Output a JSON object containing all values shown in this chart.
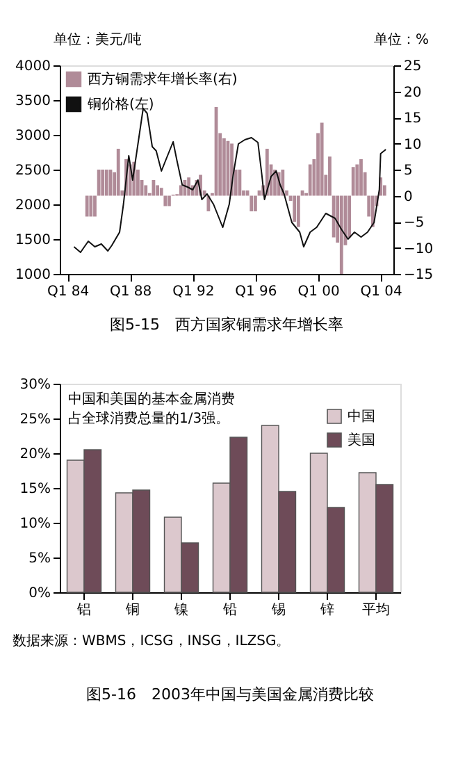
{
  "chart_data": [
    {
      "type": "bar",
      "title": "图5-15　西方国家铜需求年增长率",
      "ylabel": "单位：美元/吨",
      "y2label": "单位：%",
      "legend": "top left",
      "grid": false,
      "xlim": [
        "1983-12-15",
        "2004-05-15"
      ],
      "xticks": [
        {
          "value": "1984-01",
          "label": "Q1 84"
        },
        {
          "value": "1988-01",
          "label": "Q1 88"
        },
        {
          "value": "1992-01",
          "label": "Q1 92"
        },
        {
          "value": "1996-01",
          "label": "Q1 96"
        },
        {
          "value": "2000-01",
          "label": "Q1 00"
        },
        {
          "value": "2004-01",
          "label": "Q1 04"
        }
      ],
      "ylim": [
        1000,
        4000
      ],
      "yticks": [
        1000,
        1500,
        2000,
        2500,
        3000,
        3500,
        4000
      ],
      "y2lim": [
        -15,
        25
      ],
      "y2ticks": [
        -15,
        -10,
        -5,
        0,
        5,
        10,
        15,
        20,
        25
      ],
      "series": [
        {
          "name": "西方铜需求年增长率(右)",
          "type": "bar",
          "axis": "y2",
          "color": "#b08b98",
          "x": [
            "1985-04",
            "1985-07",
            "1985-10",
            "1986-01",
            "1986-04",
            "1986-07",
            "1986-10",
            "1987-01",
            "1987-04",
            "1987-07",
            "1987-10",
            "1988-01",
            "1988-04",
            "1988-07",
            "1988-10",
            "1989-01",
            "1989-04",
            "1989-07",
            "1989-10",
            "1990-01",
            "1990-04",
            "1990-07",
            "1990-10",
            "1991-01",
            "1991-04",
            "1991-07",
            "1991-10",
            "1992-01",
            "1992-04",
            "1992-07",
            "1992-10",
            "1993-01",
            "1993-04",
            "1993-07",
            "1993-10",
            "1994-01",
            "1994-04",
            "1994-07",
            "1994-10",
            "1995-01",
            "1995-04",
            "1995-07",
            "1995-10",
            "1996-01",
            "1996-04",
            "1996-07",
            "1996-10",
            "1997-01",
            "1997-04",
            "1997-07",
            "1997-10",
            "1998-01",
            "1998-04",
            "1998-07",
            "1998-10",
            "1999-01",
            "1999-04",
            "1999-07",
            "1999-10",
            "2000-01",
            "2000-04",
            "2000-07",
            "2000-10",
            "2001-01",
            "2001-04",
            "2001-07",
            "2001-10",
            "2002-01",
            "2002-04",
            "2002-07",
            "2002-10",
            "2003-01",
            "2003-04",
            "2003-07",
            "2003-10",
            "2004-01",
            "2004-04"
          ],
          "values": [
            -4,
            -4,
            -4,
            5,
            5,
            5,
            5,
            4.5,
            9,
            1,
            7,
            6,
            6.5,
            5,
            3,
            2,
            0.5,
            3,
            2,
            1.5,
            -2,
            -2,
            0.2,
            0.3,
            2,
            3,
            3.5,
            2,
            3,
            4,
            1,
            -3,
            0.5,
            17,
            12,
            11,
            10.5,
            10,
            5,
            5,
            1,
            1,
            -3,
            -3,
            1,
            2,
            9,
            6,
            5,
            4.5,
            5,
            1,
            -1,
            -5,
            -6,
            1,
            0.5,
            6,
            7,
            12,
            14,
            4,
            7.5,
            -8,
            -9,
            -15,
            -9.5,
            -8,
            5.5,
            6,
            7,
            4.5,
            -4,
            -6,
            -2,
            3.5,
            2
          ]
        },
        {
          "name": "铜价格(左)",
          "type": "line",
          "axis": "y",
          "color": "#111111",
          "x": [
            "1984-06",
            "1984-11",
            "1985-05",
            "1985-10",
            "1986-03",
            "1986-08",
            "1986-11",
            "1987-05",
            "1987-08",
            "1987-12",
            "1988-03",
            "1988-11",
            "1989-02",
            "1989-06",
            "1989-09",
            "1990-01",
            "1990-04",
            "1990-10",
            "1991-01",
            "1991-05",
            "1991-09",
            "1992-01",
            "1992-05",
            "1992-08",
            "1992-12",
            "1993-05",
            "1993-12",
            "1994-05",
            "1994-08",
            "1994-12",
            "1995-05",
            "1995-10",
            "1996-03",
            "1996-06",
            "1996-08",
            "1997-01",
            "1997-05",
            "1997-08",
            "1997-11",
            "1998-05",
            "1998-11",
            "1999-02",
            "1999-07",
            "1999-12",
            "2000-07",
            "2001-02",
            "2001-07",
            "2001-12",
            "2002-05",
            "2002-10",
            "2003-03",
            "2003-08",
            "2003-12",
            "2004-01",
            "2004-05"
          ],
          "values": [
            1390,
            1310,
            1470,
            1390,
            1430,
            1330,
            1410,
            1600,
            2010,
            2700,
            2350,
            3380,
            3310,
            2830,
            2770,
            2480,
            2620,
            2900,
            2620,
            2280,
            2250,
            2210,
            2350,
            2070,
            2150,
            2000,
            1670,
            2000,
            2420,
            2870,
            2930,
            2960,
            2890,
            2420,
            2070,
            2400,
            2480,
            2280,
            2150,
            1740,
            1600,
            1390,
            1600,
            1670,
            1870,
            1800,
            1640,
            1500,
            1600,
            1530,
            1600,
            1740,
            2210,
            2730,
            2790
          ]
        }
      ]
    },
    {
      "type": "bar",
      "title": "图5-16　2003年中国与美国金属消费比较",
      "legend": "top right",
      "grid": false,
      "categories": [
        "铝",
        "铜",
        "镍",
        "铅",
        "锡",
        "锌",
        "平均"
      ],
      "ylim": [
        0,
        30
      ],
      "yticks": [
        {
          "value": 0,
          "label": "0%"
        },
        {
          "value": 5,
          "label": "5%"
        },
        {
          "value": 10,
          "label": "10%"
        },
        {
          "value": 15,
          "label": "15%"
        },
        {
          "value": 20,
          "label": "20%"
        },
        {
          "value": 25,
          "label": "25%"
        },
        {
          "value": 30,
          "label": "30%"
        }
      ],
      "annotations": [
        "中国和美国的基本金属消费占全球消费总量的1/3强。",
        "数据来源：WBMS，ICSG，INSG，ILZSG。"
      ],
      "series": [
        {
          "name": "中国",
          "color": "#dcc8cd",
          "values": [
            19,
            14.3,
            10.8,
            15.7,
            24,
            20,
            17.2
          ]
        },
        {
          "name": "美国",
          "color": "#6e4b58",
          "values": [
            20.5,
            14.7,
            7.1,
            22.3,
            14.5,
            12.2,
            15.5
          ]
        }
      ]
    }
  ]
}
